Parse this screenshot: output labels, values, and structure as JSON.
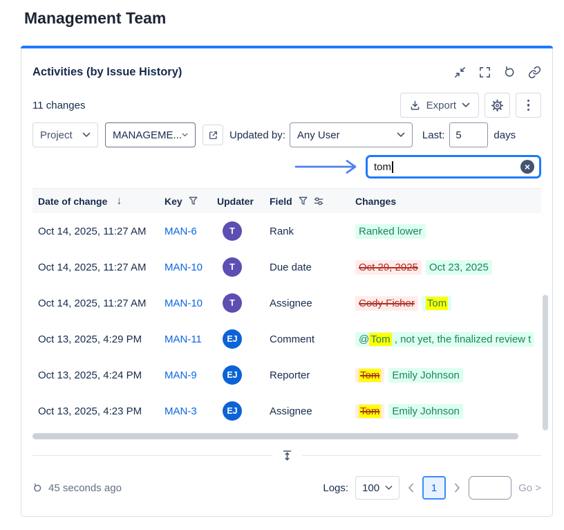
{
  "page": {
    "title": "Management Team"
  },
  "panel": {
    "title": "Activities (by Issue History)",
    "changes_count": "11 changes",
    "toolbar": {
      "export": "Export"
    },
    "filters": {
      "project_label": "Project",
      "project_value": "MANAGEME...",
      "updated_by_label": "Updated by:",
      "updated_by_value": "Any User",
      "last_label": "Last:",
      "last_value": "5",
      "days_label": "days"
    },
    "search": {
      "value": "tom"
    }
  },
  "table": {
    "columns": {
      "date": "Date of change",
      "key": "Key",
      "updater": "Updater",
      "field": "Field",
      "changes": "Changes"
    },
    "rows": [
      {
        "date": "Oct 14, 2025, 11:27 AM",
        "key": "MAN-6",
        "updater": {
          "initials": "T",
          "color": "#5d4eb3"
        },
        "field": "Rank",
        "changes": [
          {
            "type": "added",
            "parts": [
              {
                "text": "Ranked lower"
              }
            ]
          }
        ]
      },
      {
        "date": "Oct 14, 2025, 11:27 AM",
        "key": "MAN-10",
        "updater": {
          "initials": "T",
          "color": "#5d4eb3"
        },
        "field": "Due date",
        "changes": [
          {
            "type": "removed",
            "parts": [
              {
                "text": "Oct 29, 2025"
              }
            ]
          },
          {
            "type": "added",
            "parts": [
              {
                "text": "Oct 23, 2025"
              }
            ]
          }
        ]
      },
      {
        "date": "Oct 14, 2025, 11:27 AM",
        "key": "MAN-10",
        "updater": {
          "initials": "T",
          "color": "#5d4eb3"
        },
        "field": "Assignee",
        "changes": [
          {
            "type": "removed",
            "parts": [
              {
                "text": "Cody Fisher"
              }
            ]
          },
          {
            "type": "added",
            "parts": [
              {
                "text": "Tom",
                "match": true
              }
            ]
          }
        ]
      },
      {
        "date": "Oct 13, 2025, 4:29 PM",
        "key": "MAN-11",
        "updater": {
          "initials": "EJ",
          "color": "#0c63d6"
        },
        "field": "Comment",
        "changes": [
          {
            "type": "added",
            "parts": [
              {
                "text": "@"
              },
              {
                "text": "Tom",
                "match": true
              },
              {
                "text": " , not yet, the finalized review t"
              }
            ]
          }
        ]
      },
      {
        "date": "Oct 13, 2025, 4:24 PM",
        "key": "MAN-9",
        "updater": {
          "initials": "EJ",
          "color": "#0c63d6"
        },
        "field": "Reporter",
        "changes": [
          {
            "type": "removed",
            "parts": [
              {
                "text": "Tom",
                "match": true
              }
            ]
          },
          {
            "type": "added",
            "parts": [
              {
                "text": "Emily Johnson"
              }
            ]
          }
        ]
      },
      {
        "date": "Oct 13, 2025, 4:23 PM",
        "key": "MAN-3",
        "updater": {
          "initials": "EJ",
          "color": "#0c63d6"
        },
        "field": "Assignee",
        "changes": [
          {
            "type": "removed",
            "parts": [
              {
                "text": "Tom",
                "match": true
              }
            ]
          },
          {
            "type": "added",
            "parts": [
              {
                "text": "Emily Johnson"
              }
            ]
          }
        ]
      }
    ]
  },
  "footer": {
    "last_refresh": "45 seconds ago",
    "logs_label": "Logs:",
    "logs_value": "100",
    "page_number": "1",
    "go_label": "Go >"
  },
  "icons": {
    "sort_down": "↓",
    "clear": "×"
  },
  "colors": {
    "accent_blue": "#1d7afc",
    "link": "#0c66e4",
    "added_text": "#1f845a",
    "added_bg": "#dcfff1",
    "removed_text": "#ae2e24",
    "removed_bg": "#ffeceb",
    "highlight": "#ffff00",
    "avatar_purple": "#5d4eb3",
    "avatar_blue": "#0c63d6"
  }
}
